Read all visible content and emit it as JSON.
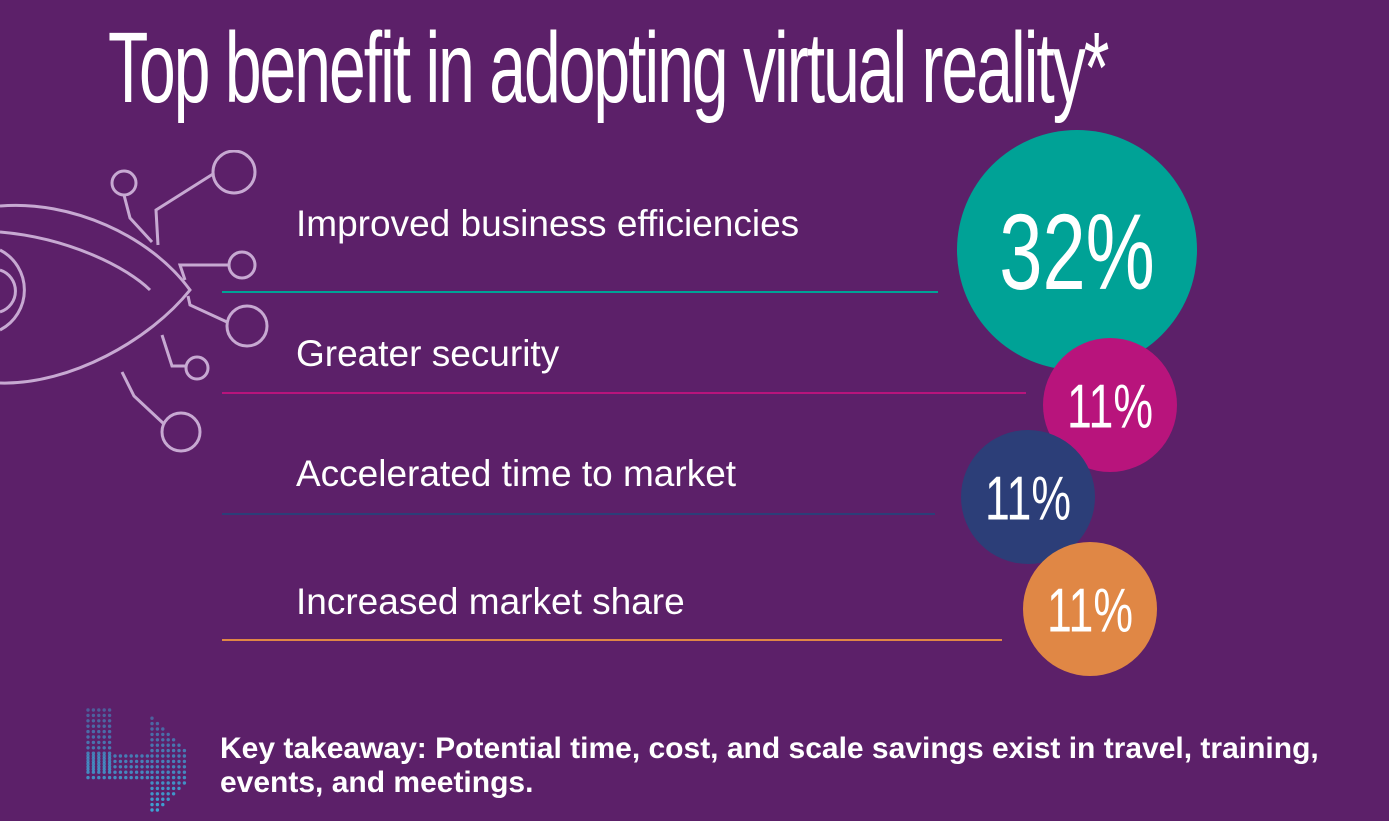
{
  "title": "Top benefit in adopting virtual reality*",
  "colors": {
    "background": "#5c2069",
    "teal": "#00a296",
    "magenta": "#b8147c",
    "navy": "#2c3e78",
    "orange": "#e08745",
    "outline": "#c7a9d2",
    "icon_dots": "#3ea2d4"
  },
  "chart_data": {
    "type": "bubble",
    "title": "Top benefit in adopting virtual reality*",
    "categories": [
      "Improved business efficiencies",
      "Greater security",
      "Accelerated time to market",
      "Increased market share"
    ],
    "values": [
      32,
      11,
      11,
      11
    ],
    "value_labels": [
      "32%",
      "11%",
      "11%",
      "11%"
    ],
    "unit": "%",
    "colors": [
      "#00a296",
      "#b8147c",
      "#2c3e78",
      "#e08745"
    ],
    "legend": "none",
    "grid": false
  },
  "icons": {
    "eye": "eye-network-icon",
    "arrow": "dotted-arrow-icon"
  },
  "takeaway": "Key takeaway: Potential time, cost, and scale savings exist in travel, training, events, and meetings."
}
